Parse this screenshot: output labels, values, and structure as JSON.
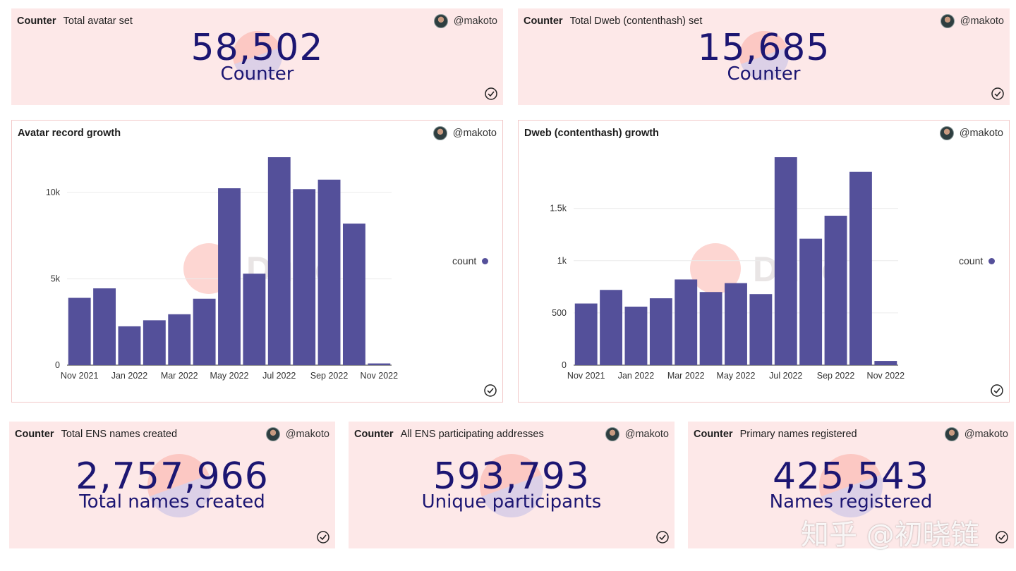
{
  "kind_label": "Counter",
  "author": "@makoto",
  "legend_label": "count",
  "watermark": "Dune",
  "site_watermark": "知乎 @初晓链",
  "colors": {
    "bar": "#54509a",
    "text_number": "#1c1672",
    "card_bg": "#fde8e8"
  },
  "counters": [
    {
      "title": "Total avatar set",
      "value": "58,502",
      "label": "Counter"
    },
    {
      "title": "Total Dweb (contenthash) set",
      "value": "15,685",
      "label": "Counter"
    },
    {
      "title": "Total ENS names created",
      "value": "2,757,966",
      "label": "Total names created"
    },
    {
      "title": "All ENS participating addresses",
      "value": "593,793",
      "label": "Unique participants"
    },
    {
      "title": "Primary names registered",
      "value": "425,543",
      "label": "Names registered"
    }
  ],
  "chart_data": [
    {
      "type": "bar",
      "title": "Avatar record growth",
      "categories": [
        "Nov 2021",
        "Dec 2021",
        "Jan 2022",
        "Feb 2022",
        "Mar 2022",
        "Apr 2022",
        "May 2022",
        "Jun 2022",
        "Jul 2022",
        "Aug 2022",
        "Sep 2022",
        "Oct 2022",
        "Nov 2022"
      ],
      "tick_labels": [
        "Nov 2021",
        "Jan 2022",
        "Mar 2022",
        "May 2022",
        "Jul 2022",
        "Sep 2022",
        "Nov 2022"
      ],
      "series": [
        {
          "name": "count",
          "values": [
            3900,
            4450,
            2250,
            2600,
            2950,
            3850,
            10250,
            5300,
            12050,
            10200,
            10750,
            8200,
            100
          ]
        }
      ],
      "yticks": [
        0,
        5000,
        10000
      ],
      "ytick_labels": [
        "0",
        "5k",
        "10k"
      ],
      "ylim": [
        0,
        12050
      ],
      "xlabel": "",
      "ylabel": "",
      "legend": "right"
    },
    {
      "type": "bar",
      "title": "Dweb (contenthash) growth",
      "categories": [
        "Nov 2021",
        "Dec 2021",
        "Jan 2022",
        "Feb 2022",
        "Mar 2022",
        "Apr 2022",
        "May 2022",
        "Jun 2022",
        "Jul 2022",
        "Aug 2022",
        "Sep 2022",
        "Oct 2022",
        "Nov 2022"
      ],
      "tick_labels": [
        "Nov 2021",
        "Jan 2022",
        "Mar 2022",
        "May 2022",
        "Jul 2022",
        "Sep 2022",
        "Nov 2022"
      ],
      "series": [
        {
          "name": "count",
          "values": [
            590,
            720,
            560,
            640,
            820,
            700,
            785,
            680,
            1990,
            1210,
            1430,
            1850,
            40
          ]
        }
      ],
      "yticks": [
        0,
        500,
        1000,
        1500
      ],
      "ytick_labels": [
        "0",
        "500",
        "1k",
        "1.5k"
      ],
      "ylim": [
        0,
        1990
      ],
      "xlabel": "",
      "ylabel": "",
      "legend": "right"
    }
  ]
}
